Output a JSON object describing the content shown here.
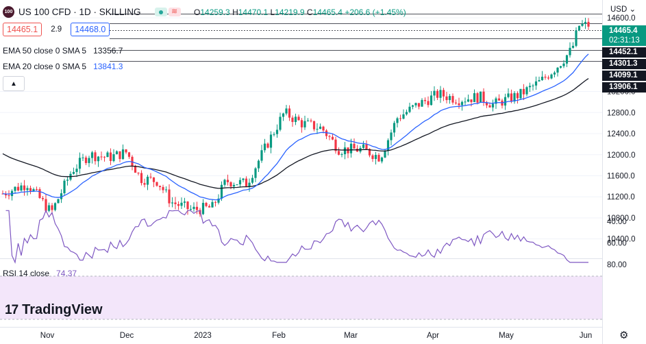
{
  "header": {
    "logo_text": "100",
    "symbol": "US 100 CFD · 1D · SKILLING",
    "ohlc": {
      "o_label": "O",
      "o": "14259.3",
      "h_label": "H",
      "h": "14470.1",
      "l_label": "L",
      "l": "14219.9",
      "c_label": "C",
      "c": "14465.4",
      "change": "+206.6 (+1.45%)"
    },
    "bid": "14465.1",
    "spread": "2.9",
    "ask": "14468.0",
    "ema50": {
      "label": "EMA 50 close 0 SMA 5",
      "value": "13356.7"
    },
    "ema20": {
      "label": "EMA 20 close 0 SMA 5",
      "value": "13841.3"
    },
    "collapse_icon": "chevron-up-icon"
  },
  "rsi": {
    "label": "RSI 14 close",
    "value": "74.37"
  },
  "axis": {
    "currency": "USD",
    "price_ticks": [
      "14600.0",
      "13200.0",
      "12800.0",
      "12400.0",
      "12000.0",
      "11600.0",
      "11200.0",
      "10800.0",
      "10400.0"
    ],
    "rsi_ticks": [
      "80.00",
      "60.00",
      "40.00"
    ],
    "time_labels": [
      "Nov",
      "Dec",
      "2023",
      "Feb",
      "Mar",
      "Apr",
      "May",
      "Jun"
    ]
  },
  "price_labels": {
    "last": "14465.4",
    "countdown": "02:31:13",
    "level1": "14452.1",
    "level2": "14301.3",
    "level3": "14099.1",
    "level4": "13906.1"
  },
  "colors": {
    "up": "#089981",
    "down": "#f23645",
    "ema20": "#2962ff",
    "ema50": "#131722",
    "rsi": "#7e57c2",
    "rsi_band": "#f3e6fa"
  },
  "brand": "TradingView",
  "chart_data": {
    "type": "candlestick",
    "title": "US 100 CFD · 1D · SKILLING",
    "x": [
      "2022-10-03",
      "2022-10-31",
      "2022-11-28",
      "2023-01-02",
      "2023-01-30",
      "2023-03-01",
      "2023-04-03",
      "2023-05-01",
      "2023-06-01"
    ],
    "close": [
      11200,
      11000,
      11700,
      10950,
      12500,
      12050,
      13150,
      13400,
      14465.4
    ],
    "ema20": [
      11300,
      11150,
      11550,
      11050,
      12150,
      12000,
      12900,
      13250,
      13841.3
    ],
    "ema50": [
      12000,
      11650,
      11600,
      11250,
      11900,
      12050,
      12650,
      13050,
      13356.7
    ],
    "rsi": [
      50,
      45,
      62,
      40,
      66,
      48,
      69,
      58,
      74.37
    ],
    "ylim": [
      10200,
      14700
    ],
    "rsi_ylim": [
      20,
      85
    ]
  }
}
